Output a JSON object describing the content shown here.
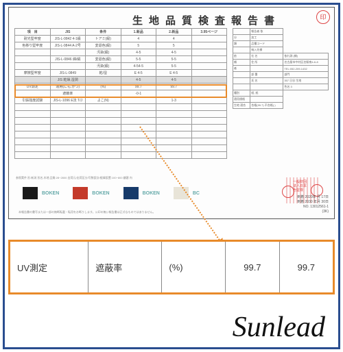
{
  "title": "生地品質検査報告書",
  "header_cols": [
    "項　目",
    "JIS",
    "条件",
    "1.新品",
    "2.新品",
    "3.95ページ"
  ],
  "rows": [
    [
      "耐光堅牢度",
      "JIS-L-0842 4-1級",
      "トアミ(級)",
      "4",
      "4",
      ""
    ],
    [
      "色移り堅牢度",
      "JIS-L-0844 A-2号",
      "変退色(級)",
      "5",
      "5",
      ""
    ],
    [
      "",
      "",
      "汚染(級)",
      "4-5",
      "4-5",
      ""
    ],
    [
      "",
      "JIS-L-0846 綿/絹",
      "変退色(級)",
      "5-5",
      "5-5",
      ""
    ],
    [
      "",
      "",
      "汚染(級)",
      "4-54-5",
      "5-5",
      ""
    ],
    [
      "摩擦堅牢度",
      "JIS-L-0849",
      "乾/湿",
      "E 4-5",
      "E 4-5",
      ""
    ],
    [
      "",
      "JIS 乾燥,湿潤",
      "",
      "4-5",
      "4-5",
      ""
    ]
  ],
  "uv_row": {
    "label": "UV測定",
    "cond": "適用(にも,かつ)",
    "unit": "(%)",
    "spec": "遮蔽率",
    "v1": "99.7",
    "v2": "99.7"
  },
  "after_rows": [
    [
      "引張強度試験",
      "JIS-L-1096 E法 T/J",
      "よこ(N)",
      "",
      "1-3",
      ""
    ]
  ],
  "side_info": [
    [
      "",
      "報告者  依"
    ],
    [
      "分",
      "加工"
    ],
    [
      "類",
      "品種コード"
    ],
    [
      "",
      "納入先様"
    ],
    [
      "依",
      "社  名",
      "依れ測  (様)"
    ],
    [
      "頼",
      "住  所",
      "名古屋市中村区名駅南4-6-8"
    ],
    [
      "者",
      "",
      "TEL:052-209-1432"
    ],
    [
      "",
      "部 署",
      "部門"
    ],
    [
      "",
      "氏 名",
      "357 日谷 生地"
    ],
    [
      "",
      "",
      "色名  3"
    ],
    [
      "種別",
      "紙, 紙"
    ],
    [
      "適用規格",
      ""
    ],
    [
      "生地  適合",
      "合格(99.7) 不合格(  )"
    ]
  ],
  "swatch_colors": [
    "#1a1a1a",
    "#c43a2a",
    "#163a6a",
    "#e8e4d8"
  ],
  "swatch_label": "BOKEN",
  "swatch_last": "BC",
  "footer_text": "参照実件  形:新潟 形名,木地   品質:28~2800   出荷元/出荷区分/写数設計/経緯設置:100~800  顧客  内",
  "footer_note": "本報告書の書写または一部の無断転載・転用をお断りします。公印の無い報告書は正式なものではありません。",
  "date_lines": [
    "到着 2020年 月 17日",
    "到着 2030 年月 30日",
    "NO. 13012561-1",
    "(3K)"
  ],
  "zoom": {
    "c1": "UV測定",
    "c2": "遮蔽率",
    "c3": "(%)",
    "c4": "99.7",
    "c5": "99.7"
  },
  "brand": "Sunlead",
  "colors": {
    "frame": "#2a4d8f",
    "accent": "#e88a2a",
    "stamp": "#d44"
  }
}
